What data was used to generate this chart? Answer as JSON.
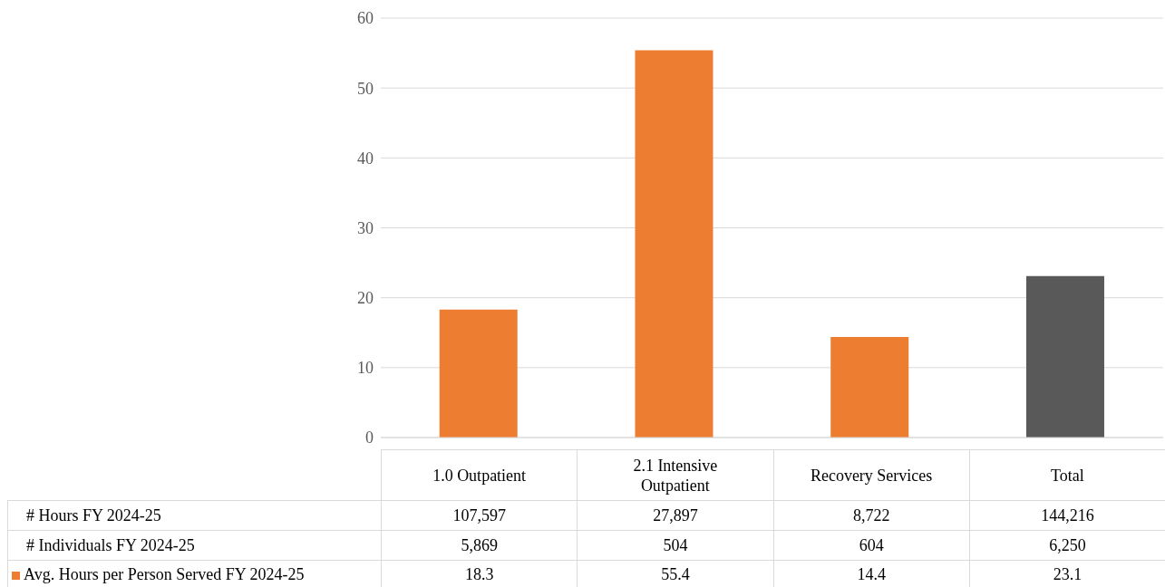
{
  "chart_data": {
    "type": "bar",
    "categories": [
      "1.0 Outpatient",
      "2.1 Intensive Outpatient",
      "Recovery Services",
      "Total"
    ],
    "series": [
      {
        "name": "Avg. Hours per Person Served FY 2024-25",
        "color": "#ed7d31",
        "colors": [
          "#ed7d31",
          "#ed7d31",
          "#ed7d31",
          "#595959"
        ],
        "values": [
          18.3,
          55.4,
          14.4,
          23.1
        ]
      }
    ],
    "ylim": [
      0,
      60
    ],
    "yticks": [
      0,
      10,
      20,
      30,
      40,
      50,
      60
    ],
    "grid": "y",
    "legend": "bottom",
    "data_labels": true,
    "annotations": [
      "# Hours FY 2024-25",
      "107,597",
      "27,897",
      "8,722",
      "144,216",
      "# Individuals FY 2024-25",
      "5,869",
      "504",
      "604",
      "6,250"
    ]
  }
}
